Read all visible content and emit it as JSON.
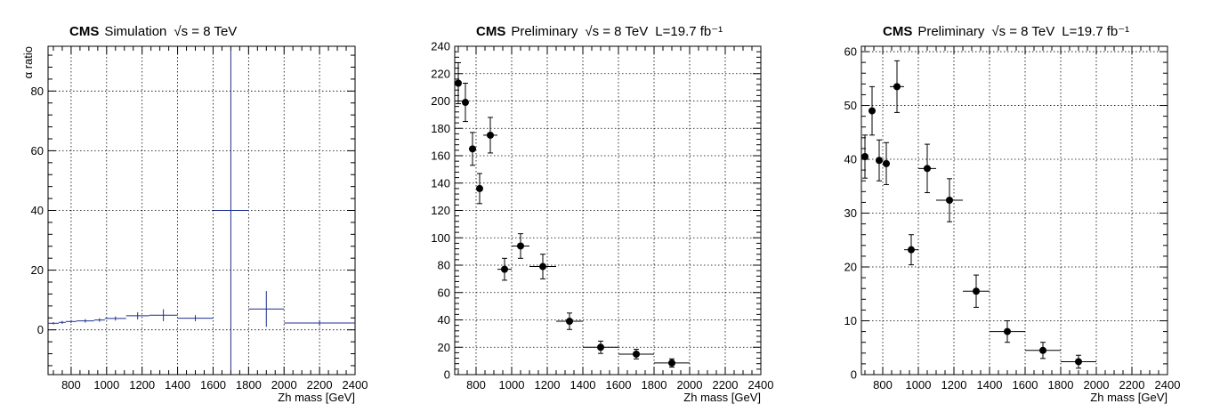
{
  "chart_data": [
    {
      "type": "scatter",
      "header": {
        "experiment": "CMS",
        "label": "Simulation",
        "energy": "√s = 8 TeV",
        "lumi": ""
      },
      "xlabel": "Zh mass [GeV]",
      "ylabel": "α ratio",
      "xlim": [
        670,
        2400
      ],
      "ylim": [
        -15,
        95
      ],
      "xticks": [
        800,
        1000,
        1200,
        1400,
        1600,
        1800,
        2000,
        2200,
        2400
      ],
      "yticks": [
        0,
        20,
        40,
        60,
        80
      ],
      "grid": true,
      "color": "#1f2f8f",
      "marker": "none",
      "points": [
        {
          "x": 700,
          "y": 2.2,
          "xerr": 30,
          "yerr": 0.4
        },
        {
          "x": 750,
          "y": 2.5,
          "xerr": 20,
          "yerr": 0.5
        },
        {
          "x": 800,
          "y": 2.8,
          "xerr": 30,
          "yerr": 0.5
        },
        {
          "x": 880,
          "y": 3.0,
          "xerr": 50,
          "yerr": 0.6
        },
        {
          "x": 960,
          "y": 3.3,
          "xerr": 30,
          "yerr": 0.6
        },
        {
          "x": 1050,
          "y": 3.8,
          "xerr": 60,
          "yerr": 0.7
        },
        {
          "x": 1175,
          "y": 4.7,
          "xerr": 65,
          "yerr": 1.2
        },
        {
          "x": 1320,
          "y": 4.9,
          "xerr": 80,
          "yerr": 2.0
        },
        {
          "x": 1500,
          "y": 3.9,
          "xerr": 100,
          "yerr": 1.0
        },
        {
          "x": 1700,
          "y": 40.0,
          "xerr": 100,
          "yerr": 53.5
        },
        {
          "x": 1900,
          "y": 7.0,
          "xerr": 100,
          "yerr": 6.0
        },
        {
          "x": 2200,
          "y": 2.3,
          "xerr": 200,
          "yerr": 1.0
        }
      ]
    },
    {
      "type": "scatter",
      "header": {
        "experiment": "CMS",
        "label": "Preliminary",
        "energy": "√s = 8 TeV",
        "lumi": "L=19.7 fb⁻¹"
      },
      "xlabel": "Zh mass [GeV]",
      "ylabel": "",
      "xlim": [
        680,
        2400
      ],
      "ylim": [
        0,
        240
      ],
      "xticks": [
        800,
        1000,
        1200,
        1400,
        1600,
        1800,
        2000,
        2200,
        2400
      ],
      "yticks": [
        0,
        20,
        40,
        60,
        80,
        100,
        120,
        140,
        160,
        180,
        200,
        220,
        240
      ],
      "grid": true,
      "color": "#000000",
      "marker": "circle",
      "points": [
        {
          "x": 700,
          "y": 213,
          "xerr": 15,
          "yerr": 15
        },
        {
          "x": 740,
          "y": 199,
          "xerr": 15,
          "yerr": 14
        },
        {
          "x": 780,
          "y": 165,
          "xerr": 15,
          "yerr": 12
        },
        {
          "x": 820,
          "y": 136,
          "xerr": 15,
          "yerr": 11
        },
        {
          "x": 880,
          "y": 175,
          "xerr": 40,
          "yerr": 13
        },
        {
          "x": 960,
          "y": 77,
          "xerr": 40,
          "yerr": 8
        },
        {
          "x": 1050,
          "y": 94,
          "xerr": 50,
          "yerr": 9
        },
        {
          "x": 1175,
          "y": 79,
          "xerr": 75,
          "yerr": 9
        },
        {
          "x": 1325,
          "y": 39,
          "xerr": 75,
          "yerr": 6
        },
        {
          "x": 1500,
          "y": 20,
          "xerr": 100,
          "yerr": 4.5
        },
        {
          "x": 1700,
          "y": 15,
          "xerr": 100,
          "yerr": 3.5
        },
        {
          "x": 1900,
          "y": 8.5,
          "xerr": 100,
          "yerr": 3
        }
      ]
    },
    {
      "type": "scatter",
      "header": {
        "experiment": "CMS",
        "label": "Preliminary",
        "energy": "√s = 8 TeV",
        "lumi": "L=19.7 fb⁻¹"
      },
      "xlabel": "Zh mass [GeV]",
      "ylabel": "",
      "xlim": [
        680,
        2400
      ],
      "ylim": [
        0,
        61
      ],
      "xticks": [
        800,
        1000,
        1200,
        1400,
        1600,
        1800,
        2000,
        2200,
        2400
      ],
      "yticks": [
        0,
        10,
        20,
        30,
        40,
        50,
        60
      ],
      "grid": true,
      "color": "#000000",
      "marker": "circle",
      "points": [
        {
          "x": 700,
          "y": 40.5,
          "xerr": 15,
          "yerr": 4
        },
        {
          "x": 740,
          "y": 49,
          "xerr": 15,
          "yerr": 4.5
        },
        {
          "x": 780,
          "y": 39.8,
          "xerr": 15,
          "yerr": 3.8
        },
        {
          "x": 820,
          "y": 39.2,
          "xerr": 15,
          "yerr": 3.9
        },
        {
          "x": 880,
          "y": 53.5,
          "xerr": 40,
          "yerr": 4.8
        },
        {
          "x": 960,
          "y": 23.2,
          "xerr": 40,
          "yerr": 2.8
        },
        {
          "x": 1050,
          "y": 38.3,
          "xerr": 50,
          "yerr": 4.5
        },
        {
          "x": 1175,
          "y": 32.4,
          "xerr": 75,
          "yerr": 4
        },
        {
          "x": 1325,
          "y": 15.5,
          "xerr": 75,
          "yerr": 3
        },
        {
          "x": 1500,
          "y": 8.0,
          "xerr": 100,
          "yerr": 2
        },
        {
          "x": 1700,
          "y": 4.5,
          "xerr": 100,
          "yerr": 1.5
        },
        {
          "x": 1900,
          "y": 2.4,
          "xerr": 100,
          "yerr": 1.2
        }
      ]
    }
  ]
}
